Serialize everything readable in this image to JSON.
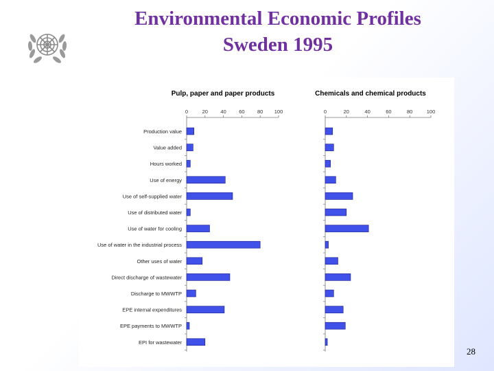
{
  "slide": {
    "title_line1": "Environmental Economic Profiles",
    "title_line2": "Sweden 1995",
    "page_number": "28"
  },
  "colors": {
    "title": "#7030a0",
    "bar_fill": "#3f51e8",
    "bar_stroke": "#1a1a8c"
  },
  "chart_data": [
    {
      "type": "bar",
      "orientation": "horizontal",
      "title": "Pulp, paper and paper products",
      "xlim": [
        0,
        100
      ],
      "ticks": [
        "0",
        "20",
        "40",
        "60",
        "80",
        "100"
      ],
      "categories": [
        "Production value",
        "Value added",
        "Hours worked",
        "Use of energy",
        "Use of self-supplied water",
        "Use of distributed water",
        "Use of water for cooling",
        "Use of water in the industrial process",
        "Other uses of water",
        "Direct discharge of wastewater",
        "Discharge to MWWTP",
        "EPE internal expenditures",
        "EPE payments to MWWTP",
        "EPI for wastewater"
      ],
      "values": [
        8,
        7,
        4,
        42,
        50,
        4,
        25,
        80,
        17,
        47,
        10,
        41,
        3,
        20
      ]
    },
    {
      "type": "bar",
      "orientation": "horizontal",
      "title": "Chemicals and chemical products",
      "xlim": [
        0,
        100
      ],
      "ticks": [
        "0",
        "20",
        "40",
        "60",
        "80",
        "100"
      ],
      "categories": [
        "Production value",
        "Value added",
        "Hours worked",
        "Use of energy",
        "Use of self-supplied water",
        "Use of distributed water",
        "Use of water for cooling",
        "Use of water in the industrial process",
        "Other uses of water",
        "Direct discharge of wastewater",
        "Discharge to MWWTP",
        "EPE internal expenditures",
        "EPE payments to MWWTP",
        "EPI for wastewater"
      ],
      "values": [
        7,
        8,
        5,
        10,
        26,
        20,
        41,
        3,
        12,
        24,
        8,
        17,
        19,
        2
      ]
    }
  ]
}
